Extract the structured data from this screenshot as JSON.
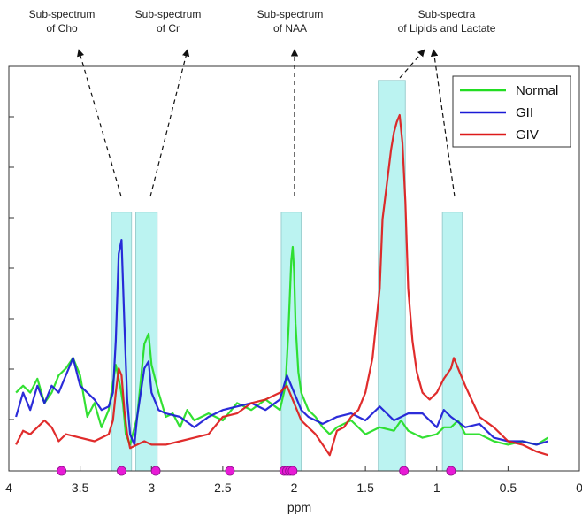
{
  "chart_data": {
    "type": "line",
    "xlabel": "ppm",
    "ylabel": "",
    "xlim": [
      4,
      0
    ],
    "x_reversed": true,
    "x_ticks": [
      4,
      3.5,
      3,
      2.5,
      2,
      1.5,
      1,
      0.5,
      0
    ],
    "x_tick_labels": [
      "4",
      "3.5",
      "3",
      "2.5",
      "2",
      "1.5",
      "1",
      "0.5",
      "0"
    ],
    "ylim": [
      0,
      1
    ],
    "grid": false,
    "legend_position": "top-right",
    "series": [
      {
        "name": "Normal",
        "color": "#22dd22",
        "x": [
          3.95,
          3.9,
          3.85,
          3.8,
          3.75,
          3.7,
          3.65,
          3.6,
          3.55,
          3.5,
          3.45,
          3.4,
          3.35,
          3.3,
          3.25,
          3.22,
          3.2,
          3.18,
          3.15,
          3.1,
          3.05,
          3.02,
          3.0,
          2.95,
          2.9,
          2.85,
          2.8,
          2.75,
          2.7,
          2.6,
          2.5,
          2.4,
          2.3,
          2.2,
          2.1,
          2.06,
          2.04,
          2.02,
          2.01,
          2.0,
          1.99,
          1.97,
          1.95,
          1.9,
          1.85,
          1.8,
          1.75,
          1.7,
          1.6,
          1.5,
          1.4,
          1.3,
          1.25,
          1.2,
          1.1,
          1.0,
          0.95,
          0.9,
          0.85,
          0.8,
          0.7,
          0.6,
          0.5,
          0.4,
          0.3,
          0.22
        ],
        "values": [
          0.2,
          0.22,
          0.2,
          0.24,
          0.17,
          0.2,
          0.25,
          0.27,
          0.3,
          0.25,
          0.13,
          0.17,
          0.1,
          0.15,
          0.28,
          0.22,
          0.17,
          0.08,
          0.05,
          0.13,
          0.34,
          0.37,
          0.28,
          0.2,
          0.13,
          0.14,
          0.1,
          0.15,
          0.12,
          0.14,
          0.12,
          0.17,
          0.15,
          0.18,
          0.15,
          0.22,
          0.38,
          0.58,
          0.62,
          0.55,
          0.4,
          0.26,
          0.2,
          0.15,
          0.13,
          0.1,
          0.08,
          0.1,
          0.12,
          0.08,
          0.1,
          0.09,
          0.12,
          0.09,
          0.07,
          0.08,
          0.1,
          0.1,
          0.12,
          0.08,
          0.08,
          0.06,
          0.05,
          0.06,
          0.05,
          0.07
        ]
      },
      {
        "name": "GII",
        "color": "#1a1ad6",
        "x": [
          3.95,
          3.9,
          3.85,
          3.8,
          3.75,
          3.7,
          3.65,
          3.6,
          3.55,
          3.5,
          3.45,
          3.4,
          3.35,
          3.3,
          3.27,
          3.25,
          3.23,
          3.21,
          3.19,
          3.17,
          3.15,
          3.12,
          3.1,
          3.05,
          3.02,
          3.0,
          2.95,
          2.9,
          2.8,
          2.7,
          2.6,
          2.5,
          2.4,
          2.3,
          2.2,
          2.1,
          2.05,
          2.0,
          1.95,
          1.9,
          1.8,
          1.7,
          1.6,
          1.5,
          1.4,
          1.3,
          1.2,
          1.1,
          1.0,
          0.95,
          0.9,
          0.8,
          0.7,
          0.6,
          0.5,
          0.4,
          0.3,
          0.22
        ],
        "values": [
          0.13,
          0.2,
          0.15,
          0.22,
          0.17,
          0.22,
          0.2,
          0.25,
          0.3,
          0.22,
          0.2,
          0.18,
          0.15,
          0.16,
          0.2,
          0.35,
          0.6,
          0.64,
          0.4,
          0.18,
          0.08,
          0.05,
          0.13,
          0.27,
          0.29,
          0.2,
          0.15,
          0.14,
          0.13,
          0.1,
          0.13,
          0.15,
          0.16,
          0.17,
          0.15,
          0.18,
          0.25,
          0.2,
          0.15,
          0.13,
          0.11,
          0.13,
          0.14,
          0.12,
          0.16,
          0.12,
          0.14,
          0.14,
          0.1,
          0.15,
          0.13,
          0.1,
          0.11,
          0.07,
          0.06,
          0.06,
          0.05,
          0.06
        ]
      },
      {
        "name": "GIV",
        "color": "#dd1a1a",
        "x": [
          3.95,
          3.9,
          3.85,
          3.8,
          3.75,
          3.7,
          3.65,
          3.6,
          3.5,
          3.4,
          3.3,
          3.27,
          3.25,
          3.23,
          3.21,
          3.19,
          3.17,
          3.15,
          3.1,
          3.05,
          3.0,
          2.9,
          2.8,
          2.7,
          2.6,
          2.5,
          2.4,
          2.3,
          2.2,
          2.1,
          2.05,
          2.0,
          1.95,
          1.9,
          1.85,
          1.8,
          1.75,
          1.7,
          1.65,
          1.6,
          1.55,
          1.5,
          1.45,
          1.4,
          1.38,
          1.35,
          1.32,
          1.3,
          1.28,
          1.26,
          1.24,
          1.22,
          1.2,
          1.17,
          1.14,
          1.1,
          1.05,
          1.0,
          0.95,
          0.9,
          0.88,
          0.85,
          0.8,
          0.7,
          0.6,
          0.5,
          0.4,
          0.3,
          0.22
        ],
        "values": [
          0.05,
          0.09,
          0.08,
          0.1,
          0.12,
          0.1,
          0.06,
          0.08,
          0.07,
          0.06,
          0.08,
          0.12,
          0.2,
          0.27,
          0.25,
          0.15,
          0.08,
          0.04,
          0.05,
          0.06,
          0.05,
          0.05,
          0.06,
          0.07,
          0.08,
          0.13,
          0.14,
          0.17,
          0.18,
          0.2,
          0.22,
          0.17,
          0.12,
          0.1,
          0.08,
          0.05,
          0.02,
          0.09,
          0.1,
          0.13,
          0.15,
          0.2,
          0.3,
          0.5,
          0.7,
          0.8,
          0.9,
          0.95,
          0.98,
          1.0,
          0.92,
          0.75,
          0.5,
          0.35,
          0.26,
          0.2,
          0.18,
          0.2,
          0.24,
          0.27,
          0.3,
          0.27,
          0.22,
          0.13,
          0.1,
          0.06,
          0.05,
          0.03,
          0.02
        ]
      }
    ],
    "regions": [
      {
        "x0": 3.28,
        "x1": 3.14,
        "top": 0.72
      },
      {
        "x0": 3.11,
        "x1": 2.96,
        "top": 0.72
      },
      {
        "x0": 2.09,
        "x1": 1.95,
        "top": 0.72
      },
      {
        "x0": 1.41,
        "x1": 1.22,
        "top": 1.1
      },
      {
        "x0": 0.96,
        "x1": 0.82,
        "top": 0.72
      }
    ],
    "markers": [
      3.63,
      3.21,
      2.97,
      2.45,
      2.07,
      2.05,
      2.03,
      2.01,
      1.23,
      0.9
    ],
    "marker_color": "#e81ad6",
    "annotations": [
      {
        "lines": [
          "Sub-spectrum",
          "of Cho"
        ]
      },
      {
        "lines": [
          "Sub-spectrum",
          "of Cr"
        ]
      },
      {
        "lines": [
          "Sub-spectrum",
          "of NAA"
        ]
      },
      {
        "lines": [
          "Sub-spectra",
          "of Lipids and Lactate"
        ]
      }
    ]
  }
}
